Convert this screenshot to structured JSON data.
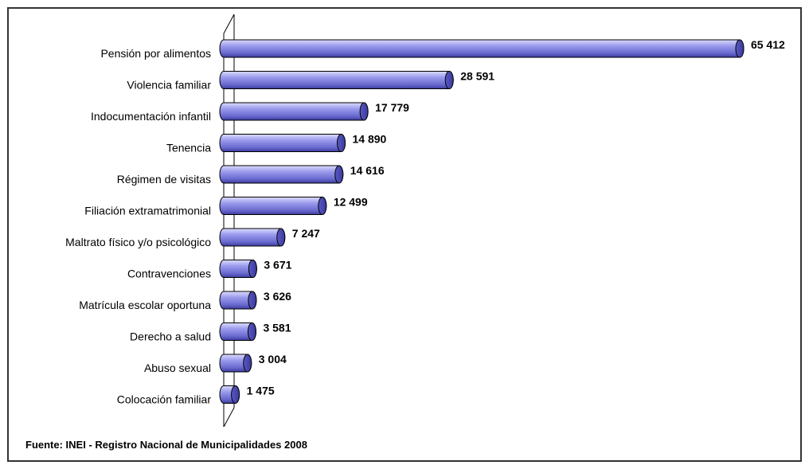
{
  "chart_data": {
    "type": "bar",
    "orientation": "horizontal",
    "title": "",
    "xlabel": "",
    "ylabel": "",
    "categories": [
      "Pensión por alimentos",
      "Violencia familiar",
      "Indocumentación infantil",
      "Tenencia",
      "Régimen de visitas",
      "Filiación extramatrimonial",
      "Maltrato físico y/o psicológico",
      "Contravenciones",
      "Matrícula escolar oportuna",
      "Derecho a salud",
      "Abuso sexual",
      "Colocación familiar"
    ],
    "values": [
      65412,
      28591,
      17779,
      14890,
      14616,
      12499,
      7247,
      3671,
      3626,
      3581,
      3004,
      1475
    ],
    "value_labels": [
      "65 412",
      "28 591",
      "17 779",
      "14 890",
      "14 616",
      "12 499",
      "7 247",
      "3 671",
      "3 626",
      "3 581",
      "3 004",
      "1 475"
    ],
    "xlim": [
      0,
      65412
    ],
    "grid": false,
    "legend": "none",
    "bar_color": "#7b7bd6",
    "source": "Fuente: INEI - Registro Nacional de Municipalidades 2008"
  }
}
